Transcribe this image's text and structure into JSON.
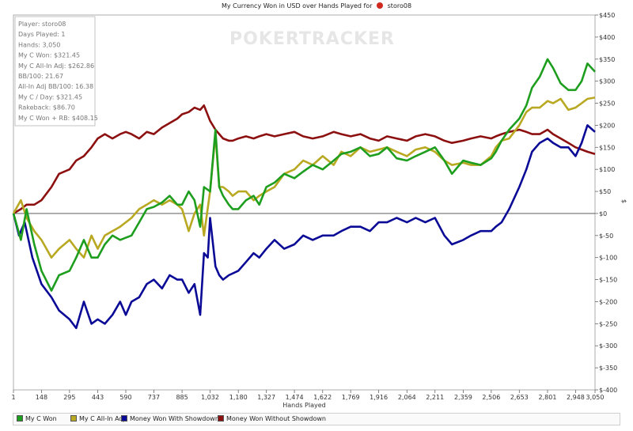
{
  "header": {
    "title_prefix": "My Currency Won in USD over Hands Played for",
    "player_name": "storo08",
    "watermark": "POKERTRACKER"
  },
  "stats_box": {
    "lines": [
      "Player: storo08",
      "Days Played: 1",
      "Hands: 3,050",
      "My C Won: $321.45",
      "My C All-In Adj: $262.86",
      "BB/100: 21.67",
      "All-In Adj BB/100: 16.38",
      "My C / Day: $321.45",
      "Rakeback: $86.70",
      "My C Won + RB: $408.15"
    ]
  },
  "legend": {
    "items": [
      {
        "label": "My C Won",
        "color": "#1e9e1e"
      },
      {
        "label": "My C All-In Adj",
        "color": "#b8a822"
      },
      {
        "label": "Money Won With Showdown",
        "color": "#0a0a96"
      },
      {
        "label": "Money Won Without Showdown",
        "color": "#8c1010"
      }
    ]
  },
  "chart_data": {
    "type": "line",
    "title": "My Currency Won in USD over Hands Played for storo08",
    "xlabel": "Hands Played",
    "ylabel": "$",
    "xlim": [
      1,
      3050
    ],
    "ylim": [
      -400,
      450
    ],
    "x_ticks": [
      "1",
      "148",
      "295",
      "443",
      "590",
      "737",
      "885",
      "1,032",
      "1,180",
      "1,327",
      "1,474",
      "1,622",
      "1,769",
      "1,916",
      "2,064",
      "2,211",
      "2,359",
      "2,506",
      "2,653",
      "2,801",
      "2,948",
      "3,050"
    ],
    "y_ticks": [
      "$450",
      "$400",
      "$350",
      "$300",
      "$250",
      "$200",
      "$150",
      "$100",
      "$50",
      "$0",
      "$-50",
      "$-100",
      "$-150",
      "$-200",
      "$-250",
      "$-300",
      "$-350",
      "$-400"
    ],
    "grid": false,
    "legend_position": "bottom",
    "series": [
      {
        "name": "My C Won",
        "color": "#1e9e1e",
        "x": [
          1,
          40,
          70,
          110,
          148,
          200,
          240,
          295,
          330,
          370,
          410,
          443,
          480,
          520,
          560,
          590,
          620,
          660,
          700,
          737,
          780,
          820,
          860,
          885,
          920,
          950,
          980,
          1000,
          1032,
          1060,
          1080,
          1100,
          1130,
          1150,
          1180,
          1220,
          1260,
          1290,
          1327,
          1370,
          1420,
          1474,
          1520,
          1570,
          1622,
          1680,
          1720,
          1769,
          1820,
          1870,
          1916,
          1960,
          2010,
          2064,
          2110,
          2160,
          2211,
          2260,
          2300,
          2359,
          2400,
          2450,
          2506,
          2530,
          2560,
          2600,
          2653,
          2690,
          2720,
          2760,
          2801,
          2830,
          2870,
          2910,
          2948,
          2980,
          3010,
          3050
        ],
        "y": [
          0,
          -60,
          10,
          -70,
          -130,
          -175,
          -140,
          -130,
          -100,
          -60,
          -100,
          -100,
          -70,
          -50,
          -60,
          -55,
          -50,
          -20,
          10,
          15,
          25,
          40,
          20,
          20,
          50,
          30,
          -30,
          60,
          50,
          190,
          60,
          40,
          20,
          10,
          10,
          30,
          40,
          20,
          60,
          70,
          90,
          80,
          95,
          110,
          100,
          120,
          135,
          140,
          150,
          130,
          135,
          150,
          125,
          120,
          130,
          140,
          150,
          120,
          90,
          120,
          115,
          110,
          125,
          140,
          165,
          190,
          215,
          245,
          285,
          310,
          350,
          330,
          295,
          280,
          280,
          300,
          340,
          321.45
        ]
      },
      {
        "name": "My C All-In Adj",
        "color": "#b8a822",
        "x": [
          1,
          40,
          70,
          110,
          148,
          200,
          240,
          295,
          330,
          370,
          410,
          443,
          480,
          520,
          560,
          590,
          620,
          660,
          700,
          737,
          780,
          820,
          860,
          885,
          920,
          950,
          980,
          1000,
          1032,
          1060,
          1080,
          1100,
          1130,
          1150,
          1180,
          1220,
          1260,
          1290,
          1327,
          1370,
          1420,
          1474,
          1520,
          1570,
          1622,
          1680,
          1720,
          1769,
          1820,
          1870,
          1916,
          1960,
          2010,
          2064,
          2110,
          2160,
          2211,
          2260,
          2300,
          2359,
          2400,
          2450,
          2506,
          2530,
          2560,
          2600,
          2653,
          2690,
          2720,
          2760,
          2801,
          2830,
          2870,
          2910,
          2948,
          2980,
          3010,
          3050
        ],
        "y": [
          0,
          30,
          -10,
          -40,
          -60,
          -100,
          -80,
          -60,
          -80,
          -100,
          -50,
          -80,
          -50,
          -40,
          -30,
          -20,
          -10,
          10,
          20,
          30,
          20,
          30,
          20,
          10,
          -40,
          0,
          20,
          -50,
          50,
          180,
          60,
          60,
          50,
          40,
          50,
          50,
          30,
          40,
          50,
          60,
          90,
          100,
          120,
          110,
          130,
          110,
          140,
          130,
          150,
          140,
          145,
          150,
          140,
          130,
          145,
          150,
          140,
          120,
          110,
          115,
          110,
          110,
          130,
          150,
          165,
          170,
          200,
          230,
          240,
          240,
          255,
          250,
          260,
          235,
          240,
          250,
          260,
          262.86
        ]
      },
      {
        "name": "Money Won With Showdown",
        "color": "#0a0a96",
        "x": [
          1,
          30,
          60,
          100,
          148,
          200,
          240,
          295,
          330,
          370,
          410,
          443,
          480,
          520,
          560,
          590,
          620,
          660,
          700,
          737,
          780,
          820,
          860,
          885,
          920,
          950,
          980,
          1000,
          1020,
          1032,
          1060,
          1080,
          1100,
          1130,
          1180,
          1220,
          1260,
          1290,
          1327,
          1370,
          1420,
          1474,
          1520,
          1570,
          1622,
          1680,
          1720,
          1769,
          1820,
          1870,
          1916,
          1960,
          2010,
          2064,
          2110,
          2160,
          2211,
          2260,
          2300,
          2359,
          2400,
          2450,
          2506,
          2530,
          2560,
          2600,
          2653,
          2690,
          2720,
          2760,
          2801,
          2830,
          2870,
          2910,
          2948,
          2980,
          3010,
          3050
        ],
        "y": [
          0,
          -50,
          -20,
          -100,
          -160,
          -190,
          -220,
          -240,
          -260,
          -200,
          -250,
          -240,
          -250,
          -230,
          -200,
          -230,
          -200,
          -190,
          -160,
          -150,
          -170,
          -140,
          -150,
          -150,
          -180,
          -160,
          -230,
          -90,
          -100,
          -10,
          -120,
          -140,
          -150,
          -140,
          -130,
          -110,
          -90,
          -100,
          -80,
          -60,
          -80,
          -70,
          -50,
          -60,
          -50,
          -50,
          -40,
          -30,
          -30,
          -40,
          -20,
          -20,
          -10,
          -20,
          -10,
          -20,
          -10,
          -50,
          -70,
          -60,
          -50,
          -40,
          -40,
          -30,
          -20,
          10,
          60,
          100,
          140,
          160,
          170,
          160,
          150,
          150,
          130,
          160,
          200,
          185
        ]
      },
      {
        "name": "Money Won Without Showdown",
        "color": "#8c1010",
        "x": [
          1,
          40,
          70,
          110,
          148,
          200,
          240,
          295,
          330,
          370,
          410,
          443,
          480,
          520,
          560,
          590,
          620,
          660,
          700,
          737,
          780,
          820,
          860,
          885,
          920,
          950,
          980,
          1000,
          1032,
          1060,
          1080,
          1100,
          1130,
          1150,
          1180,
          1220,
          1260,
          1290,
          1327,
          1370,
          1420,
          1474,
          1520,
          1570,
          1622,
          1680,
          1720,
          1769,
          1820,
          1870,
          1916,
          1960,
          2010,
          2064,
          2110,
          2160,
          2211,
          2260,
          2300,
          2359,
          2400,
          2450,
          2506,
          2530,
          2560,
          2600,
          2653,
          2690,
          2720,
          2760,
          2801,
          2830,
          2870,
          2910,
          2948,
          2980,
          3010,
          3050
        ],
        "y": [
          0,
          10,
          20,
          20,
          30,
          60,
          90,
          100,
          120,
          130,
          150,
          170,
          180,
          170,
          180,
          185,
          180,
          170,
          185,
          180,
          195,
          205,
          215,
          225,
          230,
          240,
          235,
          245,
          210,
          190,
          180,
          170,
          165,
          165,
          170,
          175,
          170,
          175,
          180,
          175,
          180,
          185,
          175,
          170,
          175,
          185,
          180,
          175,
          180,
          170,
          165,
          175,
          170,
          165,
          175,
          180,
          175,
          165,
          160,
          165,
          170,
          175,
          170,
          175,
          180,
          185,
          190,
          185,
          180,
          180,
          190,
          180,
          170,
          160,
          150,
          145,
          140,
          135
        ]
      }
    ]
  }
}
